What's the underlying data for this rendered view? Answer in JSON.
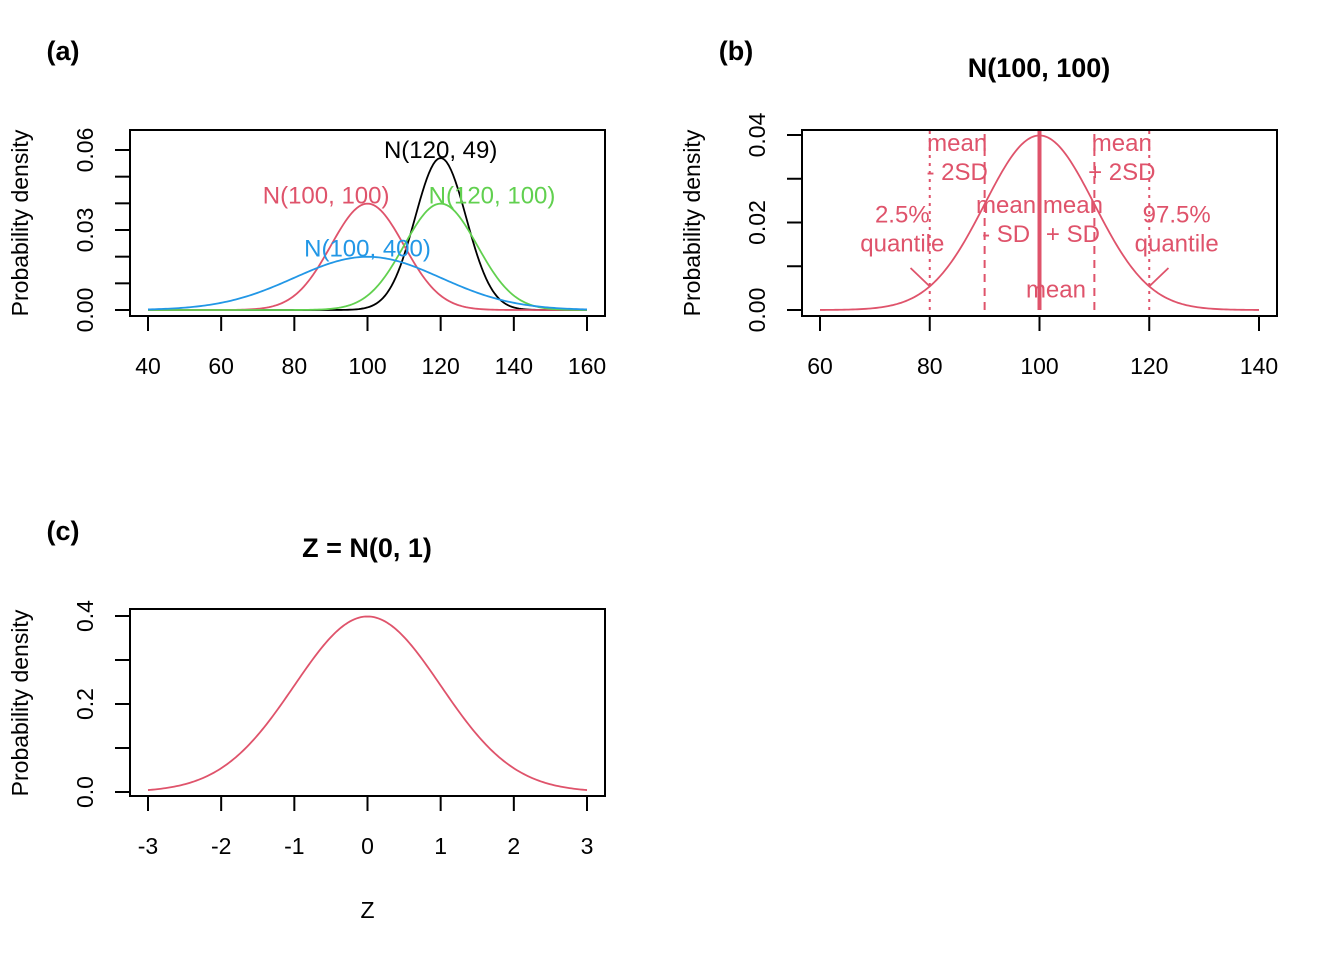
{
  "colors": {
    "black": "#000000",
    "red": "#DF536B",
    "green": "#61D04F",
    "blue": "#2297E6"
  },
  "chart_data": [
    {
      "type": "line",
      "panel_label": "(a)",
      "title": "",
      "xlabel": "",
      "ylabel": "Probability density",
      "xlim": [
        40,
        160
      ],
      "ylim": [
        0,
        0.06
      ],
      "xticks": [
        "40",
        "60",
        "80",
        "100",
        "120",
        "140",
        "160"
      ],
      "yticks": [
        "0.00",
        "0.03",
        "0.06"
      ],
      "series": [
        {
          "name": "N(120, 49)",
          "mean": 120,
          "variance": 49,
          "color": "#000000",
          "label_at": [
            120,
            0.06
          ]
        },
        {
          "name": "N(100, 100)",
          "mean": 100,
          "variance": 100,
          "color": "#DF536B",
          "label_at": [
            100,
            0.043
          ]
        },
        {
          "name": "N(120, 100)",
          "mean": 120,
          "variance": 100,
          "color": "#61D04F",
          "label_at": [
            120,
            0.043
          ]
        },
        {
          "name": "N(100, 400)",
          "mean": 100,
          "variance": 400,
          "color": "#2297E6",
          "label_at": [
            100,
            0.023
          ]
        }
      ]
    },
    {
      "type": "line",
      "panel_label": "(b)",
      "title": "N(100, 100)",
      "xlabel": "",
      "ylabel": "Probability density",
      "xlim": [
        60,
        140
      ],
      "ylim": [
        0,
        0.04
      ],
      "xticks": [
        "60",
        "80",
        "100",
        "120",
        "140"
      ],
      "yticks": [
        "0.00",
        "0.02",
        "0.04"
      ],
      "series": [
        {
          "mean": 100,
          "variance": 100,
          "color": "#DF536B"
        }
      ],
      "vlines": [
        {
          "x": 80,
          "style": "dotted"
        },
        {
          "x": 90,
          "style": "dashed"
        },
        {
          "x": 100,
          "style": "solid"
        },
        {
          "x": 110,
          "style": "dashed"
        },
        {
          "x": 120,
          "style": "dotted"
        }
      ],
      "annotations": [
        {
          "lines": [
            "mean",
            "- 2SD"
          ],
          "x": 85,
          "y": 0.034
        },
        {
          "lines": [
            "mean",
            "- SD"
          ],
          "x": 95,
          "y": 0.034
        },
        {
          "lines": [
            "mean",
            "+ SD"
          ],
          "x": 105,
          "y": 0.034
        },
        {
          "lines": [
            "mean",
            "+ 2SD"
          ],
          "x": 115,
          "y": 0.034
        },
        {
          "lines": [
            "mean"
          ],
          "x": 103,
          "y": 0.0148
        },
        {
          "lines": [
            "2.5%",
            "quantile"
          ],
          "x": 75,
          "y": 0.0185,
          "arrow_to": [
            80,
            0.0054
          ],
          "arrow_from": [
            76.5,
            0.0096
          ]
        },
        {
          "lines": [
            "97.5%",
            "quantile"
          ],
          "x": 125,
          "y": 0.0185,
          "arrow_to": [
            120,
            0.0054
          ],
          "arrow_from": [
            123.5,
            0.0096
          ]
        }
      ]
    },
    {
      "type": "line",
      "panel_label": "(c)",
      "title": "Z = N(0, 1)",
      "xlabel": "Z",
      "ylabel": "Probability density",
      "xlim": [
        -3,
        3
      ],
      "ylim": [
        0,
        0.4
      ],
      "xticks": [
        "-3",
        "-2",
        "-1",
        "0",
        "1",
        "2",
        "3"
      ],
      "yticks": [
        "0.0",
        "0.2",
        "0.4"
      ],
      "series": [
        {
          "mean": 0,
          "variance": 1,
          "color": "#DF536B"
        }
      ]
    }
  ]
}
